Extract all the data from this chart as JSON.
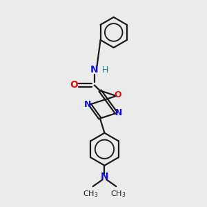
{
  "bg_color": "#ebebeb",
  "bond_color": "#1a1a1a",
  "N_color": "#1010dd",
  "O_color": "#dd1010",
  "H_color": "#008888",
  "bond_width": 1.6,
  "font_size": 10,
  "fig_size": [
    3.0,
    3.0
  ],
  "dpi": 100,
  "xlim": [
    0,
    10
  ],
  "ylim": [
    0,
    10
  ]
}
